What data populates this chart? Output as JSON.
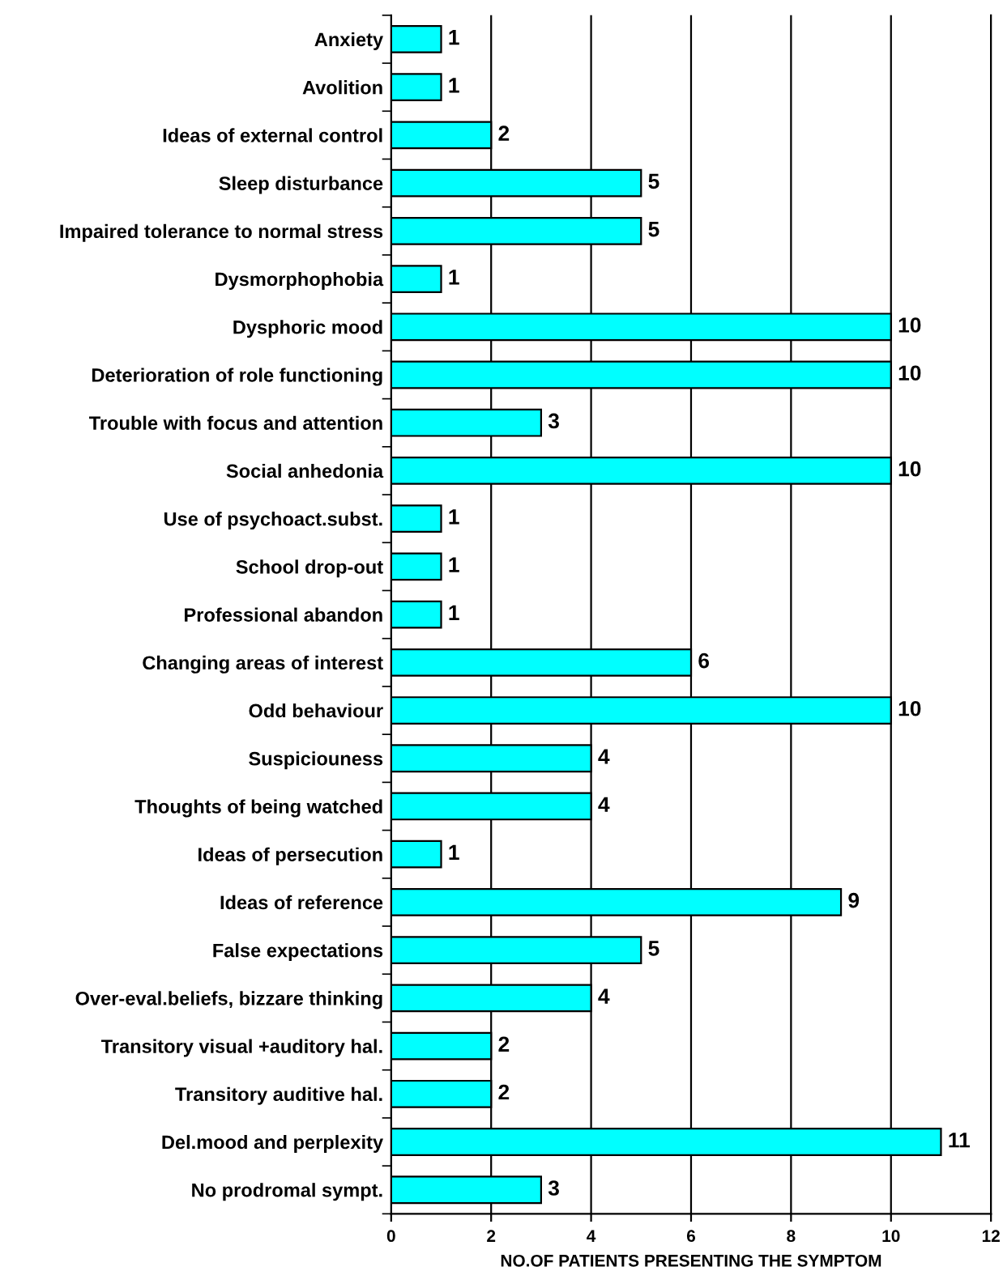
{
  "chart_data": {
    "type": "bar",
    "orientation": "horizontal",
    "xlabel": "NO.OF PATIENTS PRESENTING THE SYMPTOM",
    "categories": [
      "Anxiety",
      "Avolition",
      "Ideas of external control",
      "Sleep disturbance",
      "Impaired tolerance to normal stress",
      "Dysmorphophobia",
      "Dysphoric mood",
      "Deterioration of role functioning",
      "Trouble with focus and attention",
      "Social anhedonia",
      "Use of psychoact.subst.",
      "School drop-out",
      "Professional abandon",
      "Changing areas of interest",
      "Odd behaviour",
      "Suspiciouness",
      "Thoughts of being watched",
      "Ideas of persecution",
      "Ideas of reference",
      "False expectations",
      "Over-eval.beliefs, bizzare thinking",
      "Transitory visual +auditory hal.",
      "Transitory auditive hal.",
      "Del.mood and perplexity",
      "No prodromal sympt."
    ],
    "values": [
      1,
      1,
      2,
      5,
      5,
      1,
      10,
      10,
      3,
      10,
      1,
      1,
      1,
      6,
      10,
      4,
      4,
      1,
      9,
      5,
      4,
      2,
      2,
      11,
      3
    ],
    "color": "#00ffff",
    "xlim": [
      0,
      12
    ],
    "xticks": [
      0,
      2,
      4,
      6,
      8,
      10,
      12
    ],
    "grid": "x",
    "data_labels": true
  }
}
